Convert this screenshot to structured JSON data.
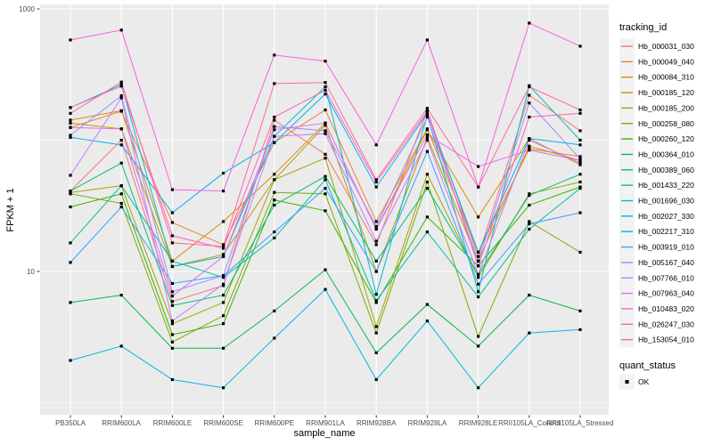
{
  "legend": {
    "tracking_id_title": "tracking_id",
    "quant_status_title": "quant_status",
    "quant_items": [
      {
        "label": "OK",
        "marker": "black-square"
      }
    ]
  },
  "style": {
    "panel_bg": "#EBEBEB",
    "grid_color": "#FFFFFF",
    "legend_key_bg": "#F2F2F2",
    "point_color": "#000000",
    "tick_label_color": "#4D4D4D",
    "title_color": "#000000"
  },
  "chart_data": {
    "type": "line",
    "title": "",
    "xlabel": "sample_name",
    "ylabel": "FPKM + 1",
    "y_scale": "log10",
    "ylim": [
      0.81,
      1080
    ],
    "grid": true,
    "legend_position": "right",
    "y_ticks": [
      {
        "v": 10,
        "label": "10"
      },
      {
        "v": 1000,
        "label": "1000"
      }
    ],
    "y_minor": [
      1,
      100
    ],
    "categories": [
      "PB350LA",
      "RRIM600LA",
      "RRIM600LE",
      "RRIM600SE",
      "RRIM600PE",
      "RRIM901LA",
      "RRIM928BA",
      "RRIM928LA",
      "RRIM928LE",
      "RRII105LA_Control",
      "RRII105LA_Stressed"
    ],
    "point_shape": "square",
    "quant_status": "OK",
    "series": [
      {
        "name": "Hb_000031_030",
        "color": "#F8766D",
        "values": [
          41,
          100,
          5.9,
          7.8,
          142,
          78,
          16,
          168,
          13,
          220,
          118
        ]
      },
      {
        "name": "Hb_000049_040",
        "color": "#EA8331",
        "values": [
          125,
          166,
          23.6,
          16,
          96,
          170,
          24,
          122,
          14,
          86,
          75
        ]
      },
      {
        "name": "Hb_000084_310",
        "color": "#D89000",
        "values": [
          142,
          168,
          12,
          24,
          55,
          135,
          21,
          120,
          26,
          103,
          65
        ]
      },
      {
        "name": "Hb_000185_120",
        "color": "#C09B00",
        "values": [
          135,
          122,
          10.9,
          13.5,
          50,
          130,
          10,
          105,
          12,
          90,
          70
        ]
      },
      {
        "name": "Hb_000185_200",
        "color": "#A3A500",
        "values": [
          40,
          45,
          4,
          5.8,
          50,
          73,
          3.8,
          55,
          9,
          39,
          48
        ]
      },
      {
        "name": "Hb_000258_080",
        "color": "#7CAE00",
        "values": [
          39,
          33,
          2.9,
          4.6,
          40,
          39,
          3.4,
          48,
          3.2,
          24,
          14
        ]
      },
      {
        "name": "Hb_000260_120",
        "color": "#39B600",
        "values": [
          31,
          39,
          3.3,
          4,
          35,
          29,
          5.8,
          26,
          11,
          32,
          44
        ]
      },
      {
        "name": "Hb_000364_010",
        "color": "#00BB4E",
        "values": [
          5.8,
          6.6,
          2.6,
          2.6,
          5,
          10.3,
          2.4,
          5.6,
          2.7,
          6.6,
          5
        ]
      },
      {
        "name": "Hb_000389_060",
        "color": "#00BF7D",
        "values": [
          41,
          67,
          5.5,
          6.6,
          32,
          53,
          12,
          43,
          9.5,
          38,
          55
        ]
      },
      {
        "name": "Hb_001433_220",
        "color": "#00C1A3",
        "values": [
          16.5,
          45,
          12,
          9,
          18,
          50,
          6,
          20,
          6.4,
          21,
          43
        ]
      },
      {
        "name": "Hb_001696_030",
        "color": "#00BFC4",
        "values": [
          177,
          265,
          10.9,
          13,
          107,
          255,
          6.7,
          155,
          7,
          260,
          100
        ]
      },
      {
        "name": "Hb_002027_330",
        "color": "#00BAE0",
        "values": [
          2.1,
          2.7,
          1.5,
          1.3,
          3.1,
          7.3,
          1.5,
          4.2,
          1.3,
          3.4,
          3.6
        ]
      },
      {
        "name": "Hb_002217_310",
        "color": "#00B0F6",
        "values": [
          105,
          92,
          28,
          56,
          96,
          225,
          44,
          160,
          14,
          103,
          92
        ]
      },
      {
        "name": "Hb_003919_010",
        "color": "#35A2FF",
        "values": [
          11.7,
          31,
          8.1,
          9.3,
          20,
          43,
          10,
          82,
          8,
          23,
          28
        ]
      },
      {
        "name": "Hb_005167_040",
        "color": "#9590FF",
        "values": [
          109,
          218,
          7,
          9.3,
          127,
          118,
          22,
          150,
          12,
          192,
          72
        ]
      },
      {
        "name": "Hb_007766_010",
        "color": "#C77CFF",
        "values": [
          54,
          210,
          4.2,
          8,
          107,
          112,
          17,
          100,
          9.5,
          100,
          67
        ]
      },
      {
        "name": "Hb_007963_040",
        "color": "#E76BF3",
        "values": [
          125,
          122,
          6.5,
          13,
          120,
          135,
          21,
          110,
          63,
          84,
          70
        ]
      },
      {
        "name": "Hb_010483_020",
        "color": "#FA62DB",
        "values": [
          580,
          690,
          42,
          41,
          445,
          400,
          92,
          580,
          44,
          780,
          520
        ]
      },
      {
        "name": "Hb_026247_030",
        "color": "#FF62BC",
        "values": [
          177,
          258,
          18.7,
          15,
          150,
          240,
          48,
          165,
          11,
          150,
          160
        ]
      },
      {
        "name": "Hb_153054_010",
        "color": "#FF6A98",
        "values": [
          160,
          277,
          16.5,
          15.5,
          270,
          275,
          50,
          175,
          44,
          255,
          170
        ]
      }
    ]
  }
}
